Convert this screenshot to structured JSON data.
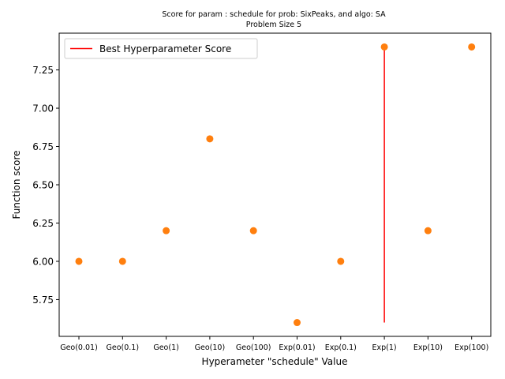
{
  "chart_data": {
    "type": "scatter",
    "title_line1": "Score for param : schedule for prob: SixPeaks, and algo: SA",
    "title_line2": "Problem Size 5",
    "xlabel": "Hyperameter \"schedule\" Value",
    "ylabel": "Function score",
    "categories": [
      "Geo(0.01)",
      "Geo(0.1)",
      "Geo(1)",
      "Geo(10)",
      "Geo(100)",
      "Exp(0.01)",
      "Exp(0.1)",
      "Exp(1)",
      "Exp(10)",
      "Exp(100)"
    ],
    "values": [
      6.0,
      6.0,
      6.2,
      6.8,
      6.2,
      5.6,
      6.0,
      7.4,
      6.2,
      7.4
    ],
    "ylim": [
      5.51,
      7.49
    ],
    "yticks": [
      5.75,
      6.0,
      6.25,
      6.5,
      6.75,
      7.0,
      7.25
    ],
    "ytick_labels": [
      "5.75",
      "6.00",
      "6.25",
      "6.50",
      "6.75",
      "7.00",
      "7.25"
    ],
    "best_line": {
      "category": "Exp(1)",
      "y_from": 5.6,
      "y_to": 7.4,
      "color": "#ff0000"
    },
    "marker_color": "#ff7f0e",
    "legend": {
      "label": "Best Hyperparameter Score",
      "placement": "top-left"
    },
    "grid": false
  }
}
